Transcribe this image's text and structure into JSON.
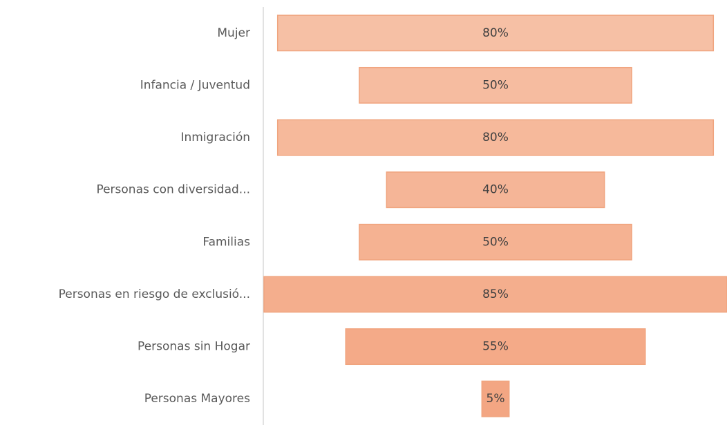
{
  "chart_data": {
    "type": "funnel",
    "categories": [
      "Mujer",
      "Infancia / Juventud",
      "Inmigración",
      "Personas con diversidad...",
      "Familias",
      "Personas en riesgo de exclusió...",
      "Personas sin Hogar",
      "Personas Mayores"
    ],
    "values": [
      80,
      50,
      80,
      40,
      50,
      85,
      55,
      5
    ],
    "value_labels": [
      "80%",
      "50%",
      "80%",
      "40%",
      "50%",
      "85%",
      "55%",
      "5%"
    ],
    "colors": [
      "#f6c0a5",
      "#f6bca0",
      "#f6b99b",
      "#f5b597",
      "#f5b292",
      "#f4ae8d",
      "#f4aa88",
      "#f3a683"
    ]
  }
}
